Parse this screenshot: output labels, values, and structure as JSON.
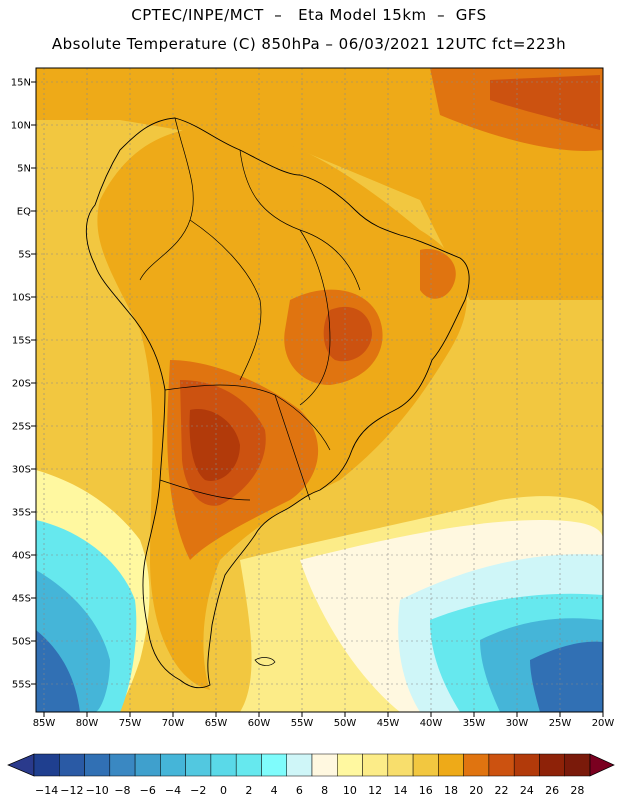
{
  "header": {
    "line1": "CPTEC/INPE/MCT  –   Eta Model 15km  –  GFS",
    "line2": "Absolute Temperature (C) 850hPa – 06/03/2021 12UTC fct=223h"
  },
  "map": {
    "lat_labels": [
      "15N",
      "10N",
      "5N",
      "EQ",
      "5S",
      "10S",
      "15S",
      "20S",
      "25S",
      "30S",
      "35S",
      "40S",
      "45S",
      "50S",
      "55S"
    ],
    "lon_labels": [
      "85W",
      "80W",
      "75W",
      "70W",
      "65W",
      "60W",
      "55W",
      "50W",
      "45W",
      "40W",
      "35W",
      "30W",
      "25W",
      "20W"
    ]
  },
  "legend": {
    "labels": [
      "-14",
      "-12",
      "-10",
      "-8",
      "-6",
      "-4",
      "-2",
      "0",
      "2",
      "4",
      "6",
      "8",
      "10",
      "12",
      "14",
      "16",
      "18",
      "20",
      "22",
      "24",
      "26",
      "28"
    ],
    "colors": [
      "#1f3f8f",
      "#2a5aa5",
      "#3170b4",
      "#3a88c2",
      "#3fa0cd",
      "#45b5d8",
      "#52c8e0",
      "#5ad9e8",
      "#66e8ee",
      "#7ffcfc",
      "#cff6f8",
      "#fff8e0",
      "#fff8a0",
      "#fcec88",
      "#f8de6c",
      "#f2c740",
      "#eeaa18",
      "#e07410",
      "#cc5210",
      "#b23a0a",
      "#8e2208",
      "#7a1a0a"
    ],
    "arrow_left_color": "#2a3a8c",
    "arrow_right_color": "#7a0020"
  }
}
